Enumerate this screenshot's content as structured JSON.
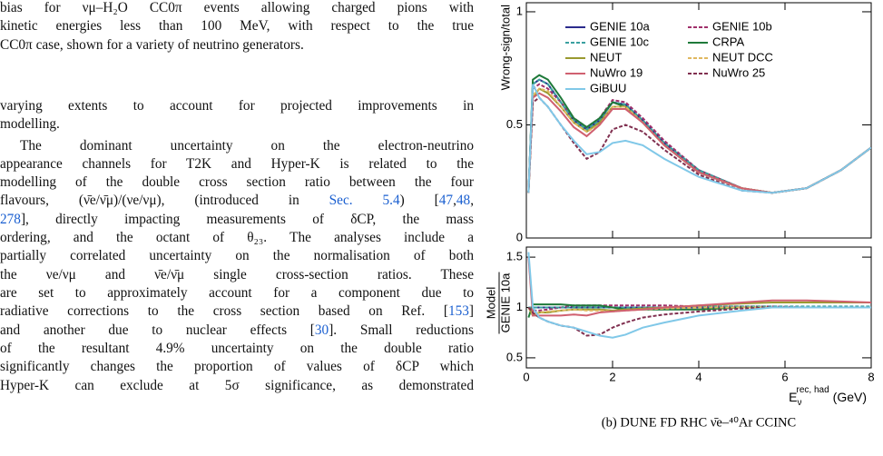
{
  "lines": [
    [
      "bias for νμ–H₂O CC0π events allowing charged pions with"
    ],
    [
      "kinetic energies less than 100 MeV, with respect to the true"
    ],
    [
      "CC0π case, shown for a variety of neutrino generators."
    ],
    [
      "varying extents to account for projected improvements in"
    ],
    [
      "modelling."
    ],
    [
      "The dominant uncertainty on the electron-neutrino"
    ],
    [
      "appearance channels for T2K and Hyper-K is related to the"
    ],
    [
      "modelling of the double cross section ratio between the four"
    ],
    [
      "flavours, (ν̄e/ν̄μ)/(νe/νμ), (introduced in ",
      {
        "link": "Sec. 5.4"
      },
      ") [",
      {
        "link": "47"
      },
      ",",
      {
        "link": "48"
      },
      ","
    ],
    [
      {
        "link": "278"
      },
      "], directly impacting measurements of δCP, the mass"
    ],
    [
      "ordering, and the octant of θ₂₃.  The analyses include a"
    ],
    [
      "partially correlated uncertainty on the normalisation of both"
    ],
    [
      "the νe/νμ and ν̄e/ν̄μ single cross-section ratios.  These"
    ],
    [
      "are set to approximately account for a component due to"
    ],
    [
      "radiative corrections to the cross section based on Ref. [",
      {
        "link": "153"
      },
      "]"
    ],
    [
      "and another due to nuclear effects [",
      {
        "link": "30"
      },
      "].  Small reductions"
    ],
    [
      "of the resultant 4.9% uncertainty on the double ratio"
    ],
    [
      "significantly changes the proportion of values of δCP which"
    ],
    [
      "Hyper-K can exclude at 5σ significance, as demonstrated"
    ]
  ],
  "caption": "(b) DUNE FD RHC ν̄e–⁴⁰Ar CCINC",
  "chart_data": [
    {
      "type": "line",
      "ylabel": "Wrong-sign/total",
      "xlim": [
        0,
        8
      ],
      "ylim": [
        0,
        1.04
      ],
      "yticks": [
        0,
        0.5,
        1
      ],
      "x": [
        0.05,
        0.15,
        0.3,
        0.5,
        0.8,
        1.1,
        1.4,
        1.7,
        2.0,
        2.3,
        2.7,
        3.2,
        4,
        5,
        5.7,
        6.5,
        7.3,
        8
      ],
      "series": [
        {
          "name": "GENIE 10a",
          "color": "#2b2b8c",
          "dashed": false,
          "values": [
            0.2,
            0.68,
            0.7,
            0.68,
            0.6,
            0.52,
            0.48,
            0.52,
            0.6,
            0.59,
            0.52,
            0.42,
            0.3,
            0.22,
            0.2,
            0.22,
            0.3,
            0.4
          ]
        },
        {
          "name": "GENIE 10b",
          "color": "#a0306a",
          "dashed": true,
          "values": [
            0.2,
            0.66,
            0.68,
            0.66,
            0.6,
            0.53,
            0.49,
            0.53,
            0.61,
            0.6,
            0.53,
            0.43,
            0.3,
            0.22,
            0.2,
            0.22,
            0.3,
            0.4
          ]
        },
        {
          "name": "GENIE 10c",
          "color": "#3aa0a0",
          "dashed": true,
          "values": [
            0.2,
            0.68,
            0.7,
            0.68,
            0.6,
            0.52,
            0.48,
            0.52,
            0.6,
            0.59,
            0.52,
            0.42,
            0.3,
            0.22,
            0.2,
            0.22,
            0.3,
            0.4
          ]
        },
        {
          "name": "CRPA",
          "color": "#1f7a3a",
          "dashed": false,
          "values": [
            0.2,
            0.7,
            0.72,
            0.7,
            0.62,
            0.53,
            0.49,
            0.53,
            0.6,
            0.58,
            0.51,
            0.41,
            0.29,
            0.22,
            0.2,
            0.22,
            0.3,
            0.4
          ]
        },
        {
          "name": "NEUT",
          "color": "#9a9a30",
          "dashed": false,
          "values": [
            0.2,
            0.62,
            0.66,
            0.64,
            0.58,
            0.51,
            0.47,
            0.51,
            0.58,
            0.58,
            0.51,
            0.41,
            0.29,
            0.22,
            0.2,
            0.22,
            0.3,
            0.4
          ]
        },
        {
          "name": "NEUT DCC",
          "color": "#e0b860",
          "dashed": true,
          "values": [
            0.2,
            0.63,
            0.66,
            0.65,
            0.58,
            0.51,
            0.47,
            0.5,
            0.58,
            0.58,
            0.51,
            0.41,
            0.29,
            0.22,
            0.2,
            0.22,
            0.3,
            0.4
          ]
        },
        {
          "name": "NuWro 19",
          "color": "#d06070",
          "dashed": false,
          "values": [
            0.2,
            0.62,
            0.64,
            0.62,
            0.56,
            0.49,
            0.45,
            0.5,
            0.57,
            0.57,
            0.51,
            0.41,
            0.29,
            0.22,
            0.2,
            0.22,
            0.3,
            0.4
          ]
        },
        {
          "name": "NuWro 25",
          "color": "#803050",
          "dashed": true,
          "values": [
            0.2,
            0.6,
            0.62,
            0.58,
            0.5,
            0.42,
            0.35,
            0.38,
            0.48,
            0.5,
            0.47,
            0.39,
            0.28,
            0.21,
            0.2,
            0.22,
            0.3,
            0.4
          ]
        },
        {
          "name": "GiBUU",
          "color": "#80c8e8",
          "dashed": false,
          "values": [
            0.2,
            0.68,
            0.62,
            0.58,
            0.5,
            0.43,
            0.37,
            0.38,
            0.42,
            0.43,
            0.41,
            0.35,
            0.27,
            0.21,
            0.2,
            0.22,
            0.3,
            0.4
          ]
        }
      ]
    },
    {
      "type": "line",
      "ylabel": "Model",
      "ylabel_denominator": "GENIE 10a",
      "xlabel": {
        "base": "E",
        "sub": "ν",
        "sup": "rec, had",
        "unit": "(GeV)"
      },
      "xlim": [
        0,
        8
      ],
      "xticks": [
        0,
        2,
        4,
        6,
        8
      ],
      "ylim": [
        0.4,
        1.6
      ],
      "yticks": [
        0.5,
        1,
        1.5
      ],
      "x": [
        0.05,
        0.15,
        0.3,
        0.5,
        0.8,
        1.1,
        1.4,
        1.7,
        2.0,
        2.3,
        2.7,
        3.2,
        4,
        5,
        5.7,
        6.5,
        7.3,
        8
      ],
      "series": [
        {
          "name": "GENIE 10a",
          "color": "#2b2b8c",
          "dashed": false,
          "values": [
            1,
            1,
            1,
            1,
            1,
            1,
            1,
            1,
            1,
            1,
            1,
            1,
            1,
            1,
            1,
            1,
            1,
            1
          ]
        },
        {
          "name": "GENIE 10b",
          "color": "#a0306a",
          "dashed": true,
          "values": [
            1,
            0.97,
            0.97,
            0.98,
            1.0,
            1.02,
            1.02,
            1.02,
            1.02,
            1.02,
            1.02,
            1.02,
            1.01,
            1.01,
            1.01,
            1.0,
            1.0,
            1.0
          ]
        },
        {
          "name": "GENIE 10c",
          "color": "#3aa0a0",
          "dashed": true,
          "values": [
            1,
            1,
            1,
            1,
            1,
            1,
            1,
            1,
            1,
            1,
            1,
            1,
            1.01,
            1.01,
            1.01,
            1.01,
            1.01,
            1.01
          ]
        },
        {
          "name": "CRPA",
          "color": "#1f7a3a",
          "dashed": false,
          "values": [
            0.9,
            1.03,
            1.03,
            1.03,
            1.03,
            1.02,
            1.02,
            1.02,
            1.0,
            0.98,
            0.98,
            0.98,
            0.98,
            1.0,
            1.0,
            1.0,
            1.0,
            1.0
          ]
        },
        {
          "name": "NEUT",
          "color": "#9a9a30",
          "dashed": false,
          "values": [
            1.0,
            0.92,
            0.95,
            0.95,
            0.97,
            0.98,
            0.98,
            0.98,
            0.97,
            0.98,
            0.99,
            1.0,
            1.02,
            1.04,
            1.05,
            1.05,
            1.05,
            1.05
          ]
        },
        {
          "name": "NEUT DCC",
          "color": "#e0b860",
          "dashed": true,
          "values": [
            1,
            0.93,
            0.95,
            0.96,
            0.97,
            0.98,
            0.97,
            0.97,
            0.96,
            0.97,
            0.98,
            0.99,
            1.0,
            1.0,
            1.0,
            1.0,
            1.0,
            1.0
          ]
        },
        {
          "name": "NuWro 19",
          "color": "#d06070",
          "dashed": false,
          "values": [
            1.5,
            0.92,
            0.92,
            0.92,
            0.92,
            0.93,
            0.92,
            0.95,
            0.96,
            0.97,
            0.98,
            1.0,
            1.02,
            1.05,
            1.07,
            1.07,
            1.06,
            1.05
          ]
        },
        {
          "name": "NuWro 25",
          "color": "#803050",
          "dashed": true,
          "values": [
            1.0,
            0.95,
            0.9,
            0.86,
            0.82,
            0.8,
            0.72,
            0.73,
            0.8,
            0.85,
            0.9,
            0.93,
            0.96,
            0.99,
            1.0,
            1.0,
            1.0,
            1.0
          ]
        },
        {
          "name": "GiBUU",
          "color": "#80c8e8",
          "dashed": false,
          "values": [
            1.55,
            1.0,
            0.9,
            0.86,
            0.82,
            0.8,
            0.76,
            0.72,
            0.7,
            0.73,
            0.8,
            0.85,
            0.92,
            0.97,
            1.0,
            1.0,
            1.0,
            1.0
          ]
        }
      ]
    }
  ]
}
